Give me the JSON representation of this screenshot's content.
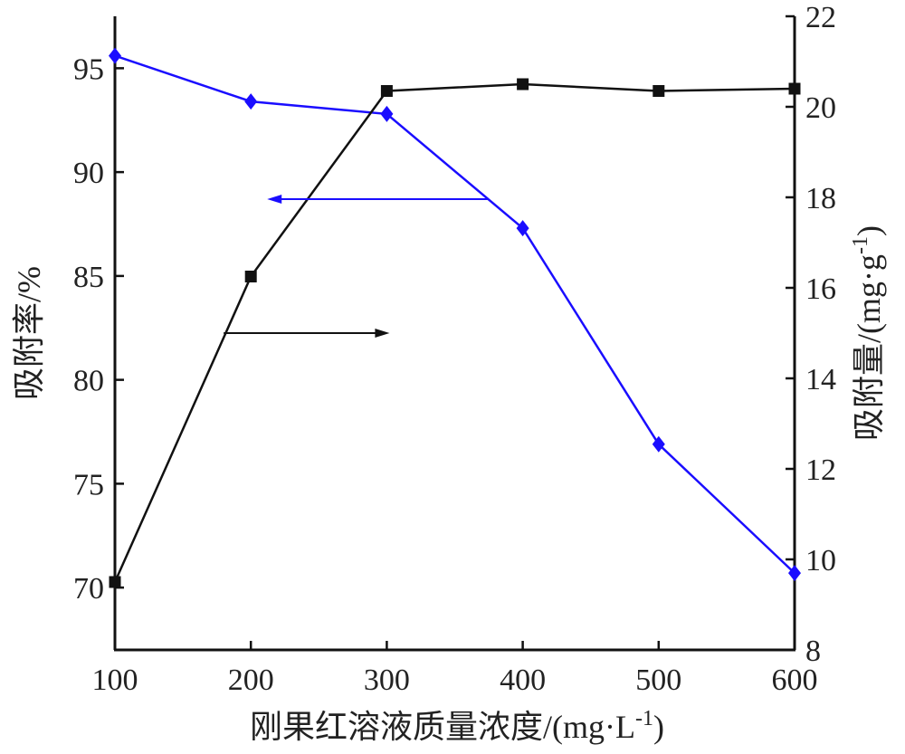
{
  "chart_data": {
    "type": "line",
    "xlabel": "刚果红溶液质量浓度/(mg·L",
    "xlabel_sup": "-1",
    "xlabel_end": ")",
    "x": [
      100,
      200,
      300,
      400,
      500,
      600
    ],
    "xlim": [
      100,
      600
    ],
    "x_ticks": [
      "100",
      "200",
      "300",
      "400",
      "500",
      "600"
    ],
    "y_left": {
      "label": "吸附率/%",
      "range": [
        67,
        97.5
      ],
      "ticks": [
        70,
        75,
        80,
        85,
        90,
        95
      ],
      "tick_labels": [
        "70",
        "75",
        "80",
        "85",
        "90",
        "95"
      ]
    },
    "y_right": {
      "label": "吸附量/(mg·g",
      "label_sup": "-1",
      "label_end": ")",
      "range": [
        8,
        22
      ],
      "ticks": [
        8,
        10,
        12,
        14,
        16,
        18,
        20,
        22
      ],
      "tick_labels": [
        "8",
        "10",
        "12",
        "14",
        "16",
        "18",
        "20",
        "22"
      ]
    },
    "series": [
      {
        "axis": "left",
        "marker": "diamond",
        "color": "#1a0dff",
        "values": [
          95.6,
          93.4,
          92.8,
          87.3,
          76.9,
          70.7
        ]
      },
      {
        "axis": "right",
        "marker": "square",
        "color": "#111111",
        "values": [
          9.5,
          16.25,
          20.35,
          20.5,
          20.35,
          20.4
        ]
      }
    ],
    "annotations": [
      {
        "kind": "arrow",
        "direction": "left",
        "indicates_axis": "left",
        "series": 0
      },
      {
        "kind": "arrow",
        "direction": "right",
        "indicates_axis": "right",
        "series": 1
      }
    ],
    "grid": false,
    "legend": "none"
  }
}
